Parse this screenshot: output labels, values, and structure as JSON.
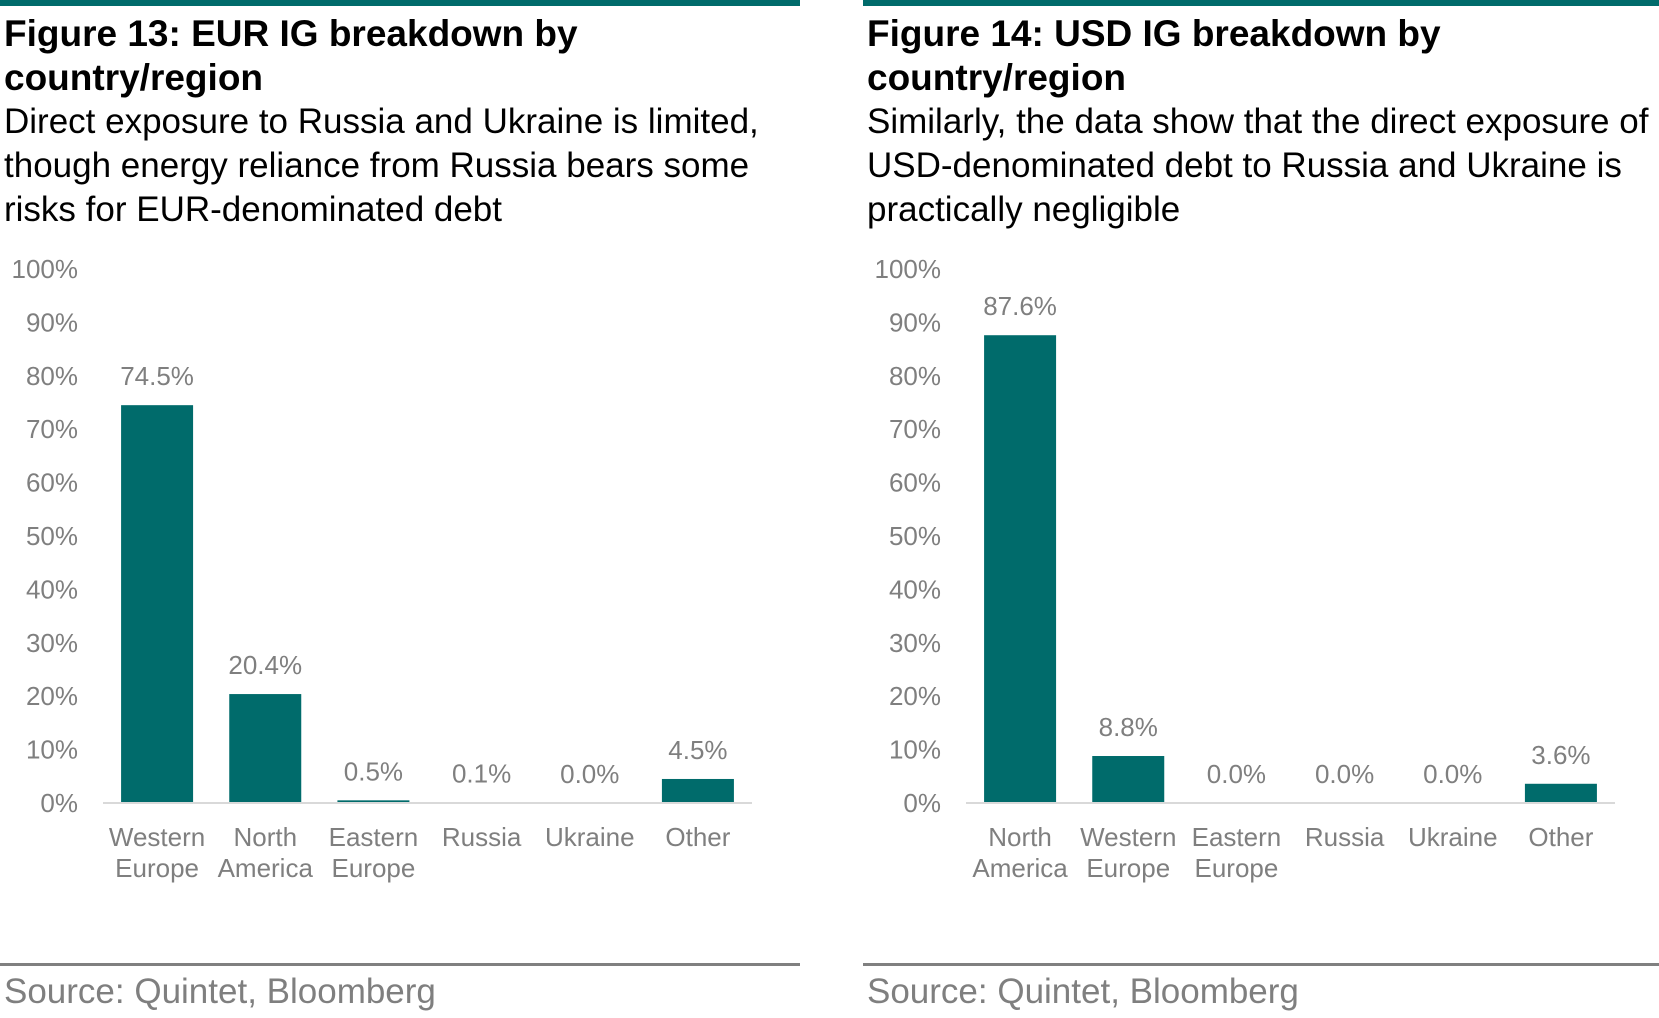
{
  "colors": {
    "bar": "#006B6B",
    "accent_rule": "#006B6B",
    "text_muted": "#7F7F7F",
    "axis_line": "#D9D9D9",
    "bottom_rule": "#808080"
  },
  "figures": [
    {
      "title": "Figure 13: EUR IG breakdown by country/region",
      "subtitle": "Direct exposure to Russia and Ukraine is limited, though energy reliance from Russia bears some risks for EUR-denominated debt",
      "source": "Source: Quintet, Bloomberg"
    },
    {
      "title": "Figure 14: USD IG breakdown by country/region",
      "subtitle": "Similarly, the data show that the direct exposure of USD-denominated debt to Russia and Ukraine is practically negligible",
      "source": "Source: Quintet, Bloomberg"
    }
  ],
  "chart_data": [
    {
      "type": "bar",
      "categories": [
        [
          "Western",
          "Europe"
        ],
        [
          "North",
          "America"
        ],
        [
          "Eastern",
          "Europe"
        ],
        [
          "Russia"
        ],
        [
          "Ukraine"
        ],
        [
          "Other"
        ]
      ],
      "values": [
        74.5,
        20.4,
        0.5,
        0.1,
        0.0,
        4.5
      ],
      "data_labels": [
        "74.5%",
        "20.4%",
        "0.5%",
        "0.1%",
        "0.0%",
        "4.5%"
      ],
      "ylim": [
        0,
        100
      ],
      "yticks": [
        "0%",
        "10%",
        "20%",
        "30%",
        "40%",
        "50%",
        "60%",
        "70%",
        "80%",
        "90%",
        "100%"
      ],
      "grid": false
    },
    {
      "type": "bar",
      "categories": [
        [
          "North",
          "America"
        ],
        [
          "Western",
          "Europe"
        ],
        [
          "Eastern",
          "Europe"
        ],
        [
          "Russia"
        ],
        [
          "Ukraine"
        ],
        [
          "Other"
        ]
      ],
      "values": [
        87.6,
        8.8,
        0.0,
        0.0,
        0.0,
        3.6
      ],
      "data_labels": [
        "87.6%",
        "8.8%",
        "0.0%",
        "0.0%",
        "0.0%",
        "3.6%"
      ],
      "ylim": [
        0,
        100
      ],
      "yticks": [
        "0%",
        "10%",
        "20%",
        "30%",
        "40%",
        "50%",
        "60%",
        "70%",
        "80%",
        "90%",
        "100%"
      ],
      "grid": false
    }
  ]
}
